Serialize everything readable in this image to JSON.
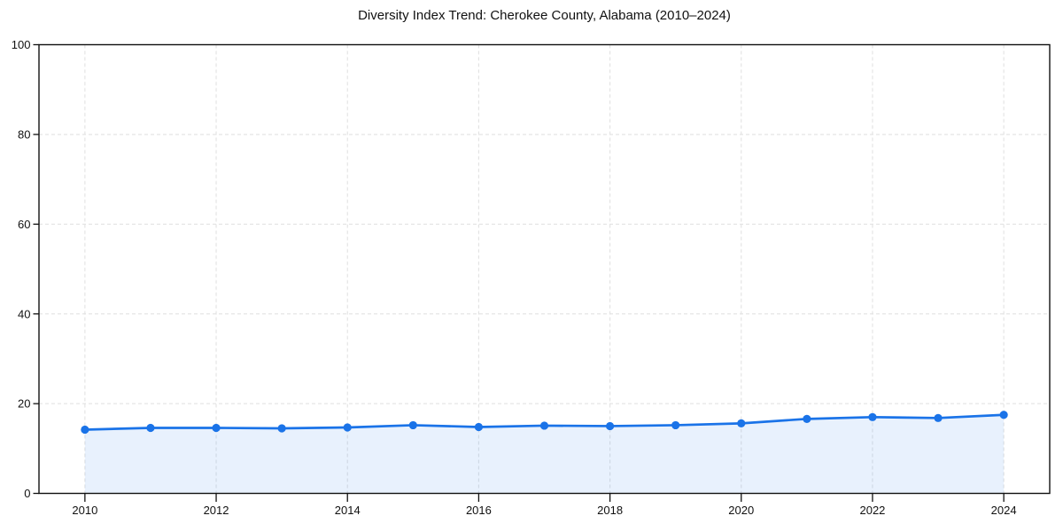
{
  "figure": {
    "background": "#ffffff"
  },
  "chart_data": {
    "type": "line",
    "title": "Diversity Index Trend: Cherokee County, Alabama (2010–2024)",
    "series_name": "Diversity Index",
    "x": [
      2010,
      2011,
      2012,
      2013,
      2014,
      2015,
      2016,
      2017,
      2018,
      2019,
      2020,
      2021,
      2022,
      2023,
      2024
    ],
    "values": [
      14.2,
      14.6,
      14.6,
      14.5,
      14.7,
      15.2,
      14.8,
      15.1,
      15.0,
      15.2,
      15.6,
      16.6,
      17.0,
      16.8,
      17.5
    ],
    "xlabel": "",
    "ylabel": "",
    "x_ticks": [
      2010,
      2012,
      2014,
      2016,
      2018,
      2020,
      2022,
      2024
    ],
    "y_ticks": [
      0,
      20,
      40,
      60,
      80,
      100
    ],
    "xlim": [
      2009.3,
      2024.7
    ],
    "ylim": [
      0,
      100
    ],
    "grid": true,
    "grid_style": "dashed",
    "legend": "none",
    "area_fill": true,
    "marker_shape": "circle",
    "colors": {
      "line": "#1a73e8",
      "fill": "#1a73e8",
      "fill_opacity": 0.1,
      "grid": "#e2e2e2",
      "spine": "#111111",
      "text": "#111111"
    }
  }
}
